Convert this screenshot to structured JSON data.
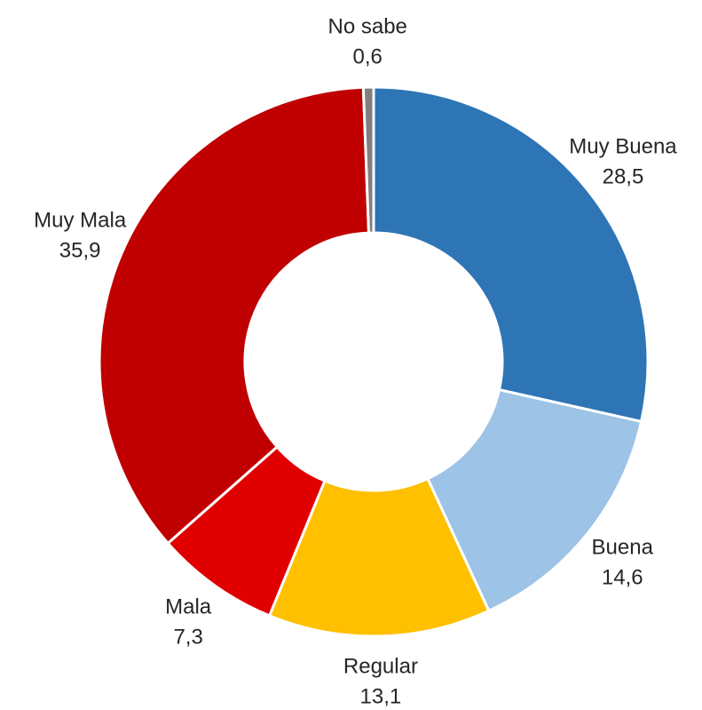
{
  "chart_data": {
    "type": "donut",
    "categories": [
      "Muy Buena",
      "Buena",
      "Regular",
      "Mala",
      "Muy Mala",
      "No sabe"
    ],
    "values": [
      28.5,
      14.6,
      13.1,
      7.3,
      35.9,
      0.6
    ],
    "value_labels": [
      "28,5",
      "14,6",
      "13,1",
      "7,3",
      "35,9",
      "0,6"
    ],
    "colors": [
      "#2e75b6",
      "#9dc3e6",
      "#ffc000",
      "#e00000",
      "#c00000",
      "#7f7f7f"
    ]
  }
}
